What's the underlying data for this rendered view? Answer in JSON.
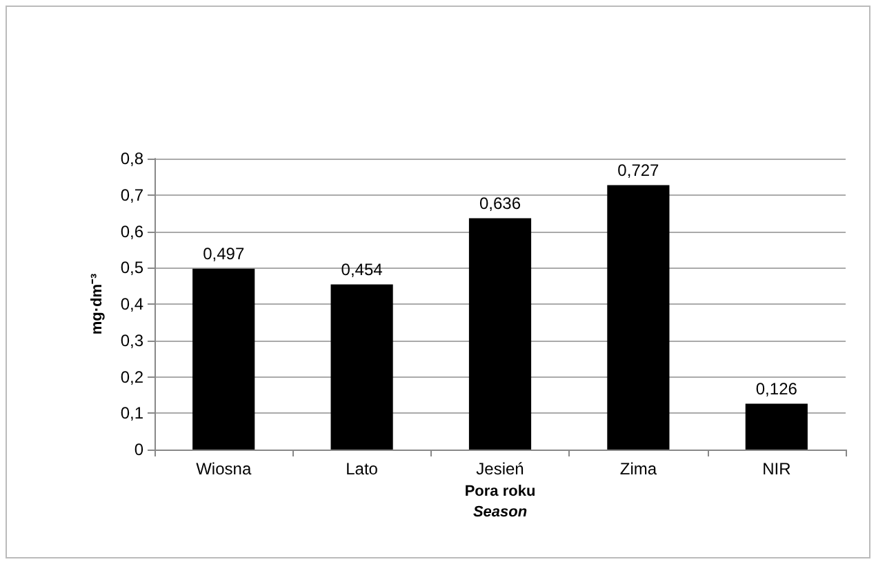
{
  "chart_data": {
    "type": "bar",
    "xlabel": "Pora roku\nSeason",
    "ylabel": "mg·dm⁻³",
    "categories": [
      "Wiosna",
      "Lato",
      "Jesień",
      "Zima",
      "NIR"
    ],
    "values": [
      0.497,
      0.454,
      0.636,
      0.727,
      0.126
    ],
    "value_labels": [
      "0,497",
      "0,454",
      "0,636",
      "0,727",
      "0,126"
    ],
    "color": "#000000",
    "ylim": [
      0,
      0.8
    ],
    "yticks": [
      {
        "value": 0,
        "label": "0"
      },
      {
        "value": 0.1,
        "label": "0,1"
      },
      {
        "value": 0.2,
        "label": "0,2"
      },
      {
        "value": 0.3,
        "label": "0,3"
      },
      {
        "value": 0.4,
        "label": "0,4"
      },
      {
        "value": 0.5,
        "label": "0,5"
      },
      {
        "value": 0.6,
        "label": "0,6"
      },
      {
        "value": 0.7,
        "label": "0,7"
      },
      {
        "value": 0.8,
        "label": "0,8"
      }
    ],
    "grid": "y"
  }
}
